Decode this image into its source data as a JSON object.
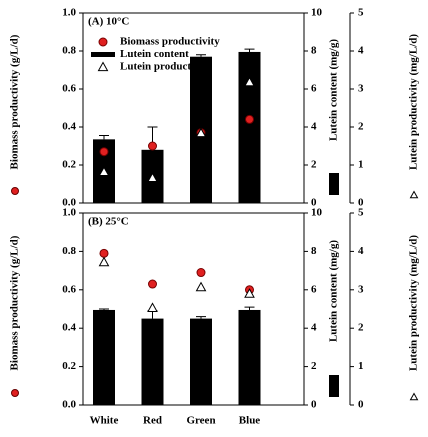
{
  "chart_data": [
    {
      "type": "bar",
      "title": "(A) 10°C",
      "categories": [
        null,
        null,
        null,
        null
      ],
      "ylabel": "Biomass productivity (g/L/d)",
      "y2label": "Lutein content (mg/g)",
      "y3label": "Lutein productivity (mg/L/d)",
      "ylim": [
        0,
        1
      ],
      "yticks": [
        {
          "value": 0,
          "label": "0.0"
        },
        {
          "value": 0.2,
          "label": "0.2"
        },
        {
          "value": 0.4,
          "label": "0.4"
        },
        {
          "value": 0.6,
          "label": "0.6"
        },
        {
          "value": 0.8,
          "label": "0.8"
        },
        {
          "value": 1,
          "label": "1.0"
        }
      ],
      "y2lim": [
        0,
        10
      ],
      "y2ticks": [
        0,
        2,
        4,
        6,
        8,
        10
      ],
      "y3lim": [
        0,
        5
      ],
      "y3ticks": [
        0,
        1,
        2,
        3,
        4,
        5
      ],
      "legend": true,
      "series": [
        {
          "name": "Biomass productivity",
          "mark": "circle",
          "color": "#e02020",
          "values": [
            0.27,
            0.3,
            0.37,
            0.44
          ]
        },
        {
          "name": "Lutein content",
          "mark": "bar",
          "axis": "y2",
          "color": "#000000",
          "values": [
            3.35,
            2.8,
            7.7,
            7.95
          ],
          "errors": [
            0.2,
            1.2,
            0.1,
            0.15
          ]
        },
        {
          "name": "Lutein productivity",
          "mark": "triangle",
          "axis": "y3",
          "color": "#ffffff",
          "values": [
            0.82,
            0.66,
            1.84,
            3.18
          ]
        }
      ]
    },
    {
      "type": "bar",
      "title": "(B) 25°C",
      "categories": [
        "White",
        "Red",
        "Green",
        "Blue"
      ],
      "ylabel": "Biomass productivity (g/L/d)",
      "y2label": "Lutein content (mg/g)",
      "y3label": "Lutein productivity (mg/L/d)",
      "ylim": [
        0,
        1
      ],
      "yticks": [
        {
          "value": 0,
          "label": "0.0"
        },
        {
          "value": 0.2,
          "label": "0.2"
        },
        {
          "value": 0.4,
          "label": "0.4"
        },
        {
          "value": 0.6,
          "label": "0.6"
        },
        {
          "value": 0.8,
          "label": "0.8"
        },
        {
          "value": 1,
          "label": "1.0"
        }
      ],
      "y2lim": [
        0,
        10
      ],
      "y2ticks": [
        0,
        2,
        4,
        6,
        8,
        10
      ],
      "y3lim": [
        0,
        5
      ],
      "y3ticks": [
        0,
        1,
        2,
        3,
        4,
        5
      ],
      "legend": false,
      "series": [
        {
          "mark": "circle",
          "color": "#e02020",
          "values": [
            0.79,
            0.63,
            0.69,
            0.6
          ]
        },
        {
          "mark": "bar",
          "axis": "y2",
          "color": "#000000",
          "values": [
            4.95,
            4.5,
            4.5,
            4.95
          ],
          "errors": [
            0.05,
            0.4,
            0.1,
            0.15
          ]
        },
        {
          "mark": "triangle",
          "axis": "y3",
          "color": "#ffffff",
          "values": [
            3.72,
            2.53,
            3.07,
            2.9
          ]
        }
      ]
    }
  ]
}
